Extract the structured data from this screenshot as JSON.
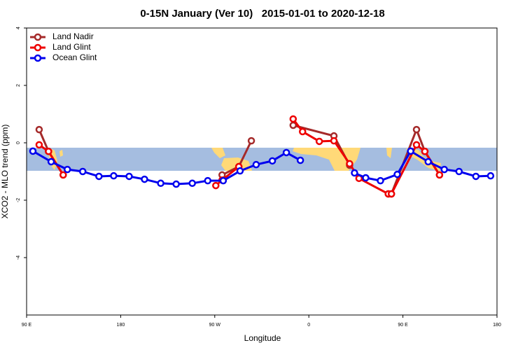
{
  "chart_data": {
    "type": "line",
    "title": "0-15N January (Ver 10)   2015-01-01 to 2020-12-18",
    "x_label": "Longitude",
    "y_label": "XCO2 - MLO trend (ppm)",
    "xlim": [
      90,
      540
    ],
    "xticks": [
      {
        "value": 90,
        "label": "90 E"
      },
      {
        "value": 180,
        "label": "180"
      },
      {
        "value": 270,
        "label": "90 W"
      },
      {
        "value": 360,
        "label": "0"
      },
      {
        "value": 450,
        "label": "90 E"
      },
      {
        "value": 540,
        "label": "180"
      }
    ],
    "ylim": [
      -6,
      4
    ],
    "yticks": [
      -4,
      -2,
      0,
      2,
      4
    ],
    "legend": "top-left",
    "series": [
      {
        "name": "Land Nadir",
        "color": "#a52a2a",
        "x": [
          102,
          111,
          125,
          200,
          277,
          293,
          305,
          320,
          345,
          384,
          399,
          420,
          436,
          439,
          463,
          471,
          485
        ],
        "values": [
          0.46,
          -0.3,
          -1.12,
          null,
          -1.12,
          -0.83,
          0.07,
          null,
          0.61,
          0.24,
          -0.78,
          null,
          -1.78,
          -1.78,
          0.46,
          -0.3,
          -1.12
        ]
      },
      {
        "name": "Land Glint",
        "color": "#ee0000",
        "x": [
          102,
          111,
          125,
          200,
          271,
          277,
          293,
          320,
          345,
          354,
          370,
          384,
          399,
          408,
          436,
          439,
          463,
          471,
          485
        ],
        "values": [
          -0.07,
          -0.3,
          -1.12,
          null,
          -1.49,
          -1.3,
          -0.83,
          null,
          0.83,
          0.39,
          0.05,
          0.07,
          -0.73,
          -1.24,
          -1.78,
          -1.78,
          -0.07,
          -0.3,
          -1.12
        ]
      },
      {
        "name": "Ocean Glint",
        "color": "#0000ee",
        "x": [
          96,
          113.5,
          129,
          143.7,
          159.2,
          173.3,
          188.1,
          202.8,
          218.3,
          233.1,
          248.5,
          263.3,
          278.1,
          294.2,
          309.6,
          325.1,
          338.5,
          351.9,
          380,
          403.7,
          414.4,
          428.5,
          444.6,
          457.4,
          474.2,
          489.6,
          503.7,
          519.8,
          533.9
        ],
        "values": [
          -0.29,
          -0.66,
          -0.93,
          -1.0,
          -1.17,
          -1.15,
          -1.17,
          -1.27,
          -1.41,
          -1.44,
          -1.41,
          -1.32,
          -1.32,
          -0.98,
          -0.76,
          -0.63,
          -0.34,
          -0.61,
          null,
          -1.05,
          -1.22,
          -1.32,
          -1.1,
          -0.29,
          -0.66,
          -0.93,
          -1.0,
          -1.17,
          -1.15
        ]
      }
    ]
  }
}
